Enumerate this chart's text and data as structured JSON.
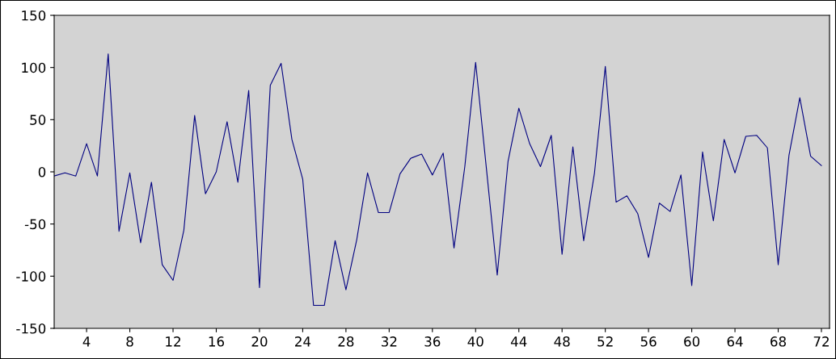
{
  "chart_data": {
    "type": "line",
    "x": [
      1,
      2,
      3,
      4,
      5,
      6,
      7,
      8,
      9,
      10,
      11,
      12,
      13,
      14,
      15,
      16,
      17,
      18,
      19,
      20,
      21,
      22,
      23,
      24,
      25,
      26,
      27,
      28,
      29,
      30,
      31,
      32,
      33,
      34,
      35,
      36,
      37,
      38,
      39,
      40,
      41,
      42,
      43,
      44,
      45,
      46,
      47,
      48,
      49,
      50,
      51,
      52,
      53,
      54,
      55,
      56,
      57,
      58,
      59,
      60,
      61,
      62,
      63,
      64,
      65,
      66,
      67,
      68,
      69,
      70,
      71,
      72
    ],
    "series": [
      {
        "color": "#000080",
        "values": [
          -4,
          -1,
          -4,
          27,
          -4,
          113,
          -57,
          -1,
          -68,
          -10,
          -89,
          -104,
          -56,
          54,
          -21,
          0,
          48,
          -10,
          78,
          -111,
          83,
          104,
          31,
          -7,
          -128,
          -128,
          -66,
          -113,
          -65,
          -1,
          -39,
          -39,
          -2,
          13,
          17,
          -3,
          18,
          -73,
          5,
          105,
          3,
          -99,
          10,
          61,
          27,
          5,
          35,
          -79,
          24,
          -66,
          -1,
          101,
          -29,
          -23,
          -40,
          -82,
          -30,
          -38,
          -3,
          -109,
          19,
          -47,
          31,
          -1,
          34,
          35,
          23,
          -89,
          16,
          71,
          15,
          6
        ]
      }
    ],
    "xlim": [
      1,
      72.75
    ],
    "xticks": [
      4,
      8,
      12,
      16,
      20,
      24,
      28,
      32,
      36,
      40,
      44,
      48,
      52,
      56,
      60,
      64,
      68,
      72
    ],
    "ylim": [
      -150,
      150
    ],
    "yticks": [
      -150,
      -100,
      -50,
      0,
      50,
      100,
      150
    ],
    "grid": false,
    "legend": false,
    "marker": "none",
    "line_style": "solid"
  }
}
